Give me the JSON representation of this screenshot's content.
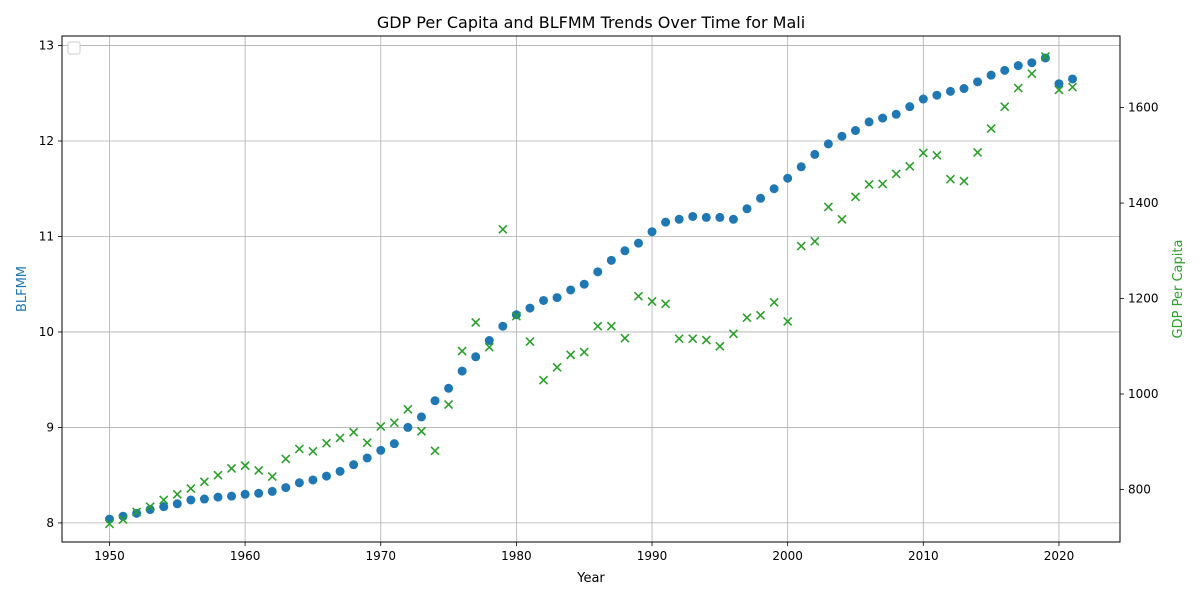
{
  "chart_data": {
    "type": "scatter",
    "title": "GDP Per Capita and BLFMM Trends Over Time for Mali",
    "xlabel": "Year",
    "ylabel_left": "BLFMM",
    "ylabel_right": "GDP Per Capita",
    "xlim": [
      1946.5,
      2024.5
    ],
    "ylim_left": [
      7.8,
      13.1
    ],
    "ylim_right": [
      690,
      1750
    ],
    "xticks": [
      1950,
      1960,
      1970,
      1980,
      1990,
      2000,
      2010,
      2020
    ],
    "yticks_left": [
      8,
      9,
      10,
      11,
      12,
      13
    ],
    "yticks_right": [
      800,
      1000,
      1200,
      1400,
      1600
    ],
    "grid": true,
    "legend": "top-left",
    "colors": {
      "blfmm": "#1f77b4",
      "gdp": "#2ca02c"
    },
    "series": [
      {
        "key": "blfmm",
        "axis": "left",
        "marker": "circle",
        "x": [
          1950,
          1951,
          1952,
          1953,
          1954,
          1955,
          1956,
          1957,
          1958,
          1959,
          1960,
          1961,
          1962,
          1963,
          1964,
          1965,
          1966,
          1967,
          1968,
          1969,
          1970,
          1971,
          1972,
          1973,
          1974,
          1975,
          1976,
          1977,
          1978,
          1979,
          1980,
          1981,
          1982,
          1983,
          1984,
          1985,
          1986,
          1987,
          1988,
          1989,
          1990,
          1991,
          1992,
          1993,
          1994,
          1995,
          1996,
          1997,
          1998,
          1999,
          2000,
          2001,
          2002,
          2003,
          2004,
          2005,
          2006,
          2007,
          2008,
          2009,
          2010,
          2011,
          2012,
          2013,
          2014,
          2015,
          2016,
          2017,
          2018,
          2019,
          2020,
          2021
        ],
        "values": [
          8.04,
          8.07,
          8.1,
          8.14,
          8.17,
          8.2,
          8.24,
          8.25,
          8.27,
          8.28,
          8.3,
          8.31,
          8.33,
          8.37,
          8.42,
          8.45,
          8.49,
          8.54,
          8.61,
          8.68,
          8.76,
          8.83,
          9.0,
          9.11,
          9.28,
          9.41,
          9.59,
          9.74,
          9.91,
          10.06,
          10.18,
          10.25,
          10.33,
          10.36,
          10.44,
          10.5,
          10.63,
          10.75,
          10.85,
          10.93,
          11.05,
          11.15,
          11.18,
          11.21,
          11.2,
          11.2,
          11.18,
          11.29,
          11.4,
          11.5,
          11.61,
          11.73,
          11.86,
          11.97,
          12.05,
          12.11,
          12.2,
          12.24,
          12.28,
          12.36,
          12.44,
          12.48,
          12.52,
          12.55,
          12.62,
          12.69,
          12.74,
          12.79,
          12.82,
          12.87,
          12.6,
          12.65
        ]
      },
      {
        "key": "gdp",
        "axis": "right",
        "marker": "x",
        "x": [
          1950,
          1951,
          1952,
          1953,
          1954,
          1955,
          1956,
          1957,
          1958,
          1959,
          1960,
          1961,
          1962,
          1963,
          1964,
          1965,
          1966,
          1967,
          1968,
          1969,
          1970,
          1971,
          1972,
          1973,
          1974,
          1975,
          1976,
          1977,
          1978,
          1979,
          1980,
          1981,
          1982,
          1983,
          1984,
          1985,
          1986,
          1987,
          1988,
          1989,
          1990,
          1991,
          1992,
          1993,
          1994,
          1995,
          1996,
          1997,
          1998,
          1999,
          2000,
          2001,
          2002,
          2003,
          2004,
          2005,
          2006,
          2007,
          2008,
          2009,
          2010,
          2011,
          2012,
          2013,
          2014,
          2015,
          2016,
          2017,
          2018,
          2019,
          2020,
          2021
        ],
        "values": [
          728,
          737,
          753,
          764,
          778,
          790,
          802,
          816,
          830,
          844,
          850,
          840,
          827,
          864,
          885,
          880,
          897,
          908,
          920,
          898,
          932,
          940,
          968,
          922,
          881,
          978,
          1090,
          1150,
          1098,
          1345,
          1163,
          1110,
          1029,
          1056,
          1082,
          1088,
          1142,
          1142,
          1117,
          1205,
          1194,
          1189,
          1116,
          1116,
          1113,
          1100,
          1126,
          1160,
          1165,
          1192,
          1152,
          1310,
          1320,
          1392,
          1366,
          1413,
          1439,
          1440,
          1461,
          1477,
          1505,
          1500,
          1450,
          1446,
          1506,
          1556,
          1602,
          1641,
          1671,
          1707,
          1637,
          1643
        ]
      }
    ]
  }
}
